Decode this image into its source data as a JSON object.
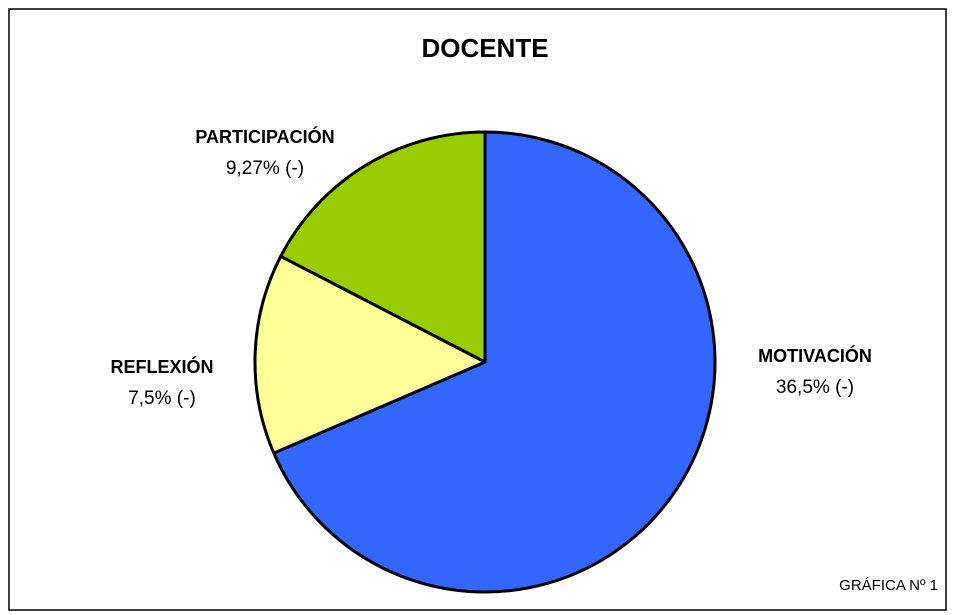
{
  "chart_data": {
    "type": "pie",
    "title": "DOCENTE",
    "categories": [
      "MOTIVACIÓN",
      "REFLEXIÓN",
      "PARTICIPACIÓN"
    ],
    "values": [
      36.5,
      7.5,
      9.27
    ],
    "value_labels": [
      "36,5% (-)",
      "7,5% (-)",
      "9,27% (-)"
    ],
    "colors": [
      "#3366ff",
      "#ffff99",
      "#99cc00"
    ],
    "caption": "GRÁFICA Nº 1"
  }
}
